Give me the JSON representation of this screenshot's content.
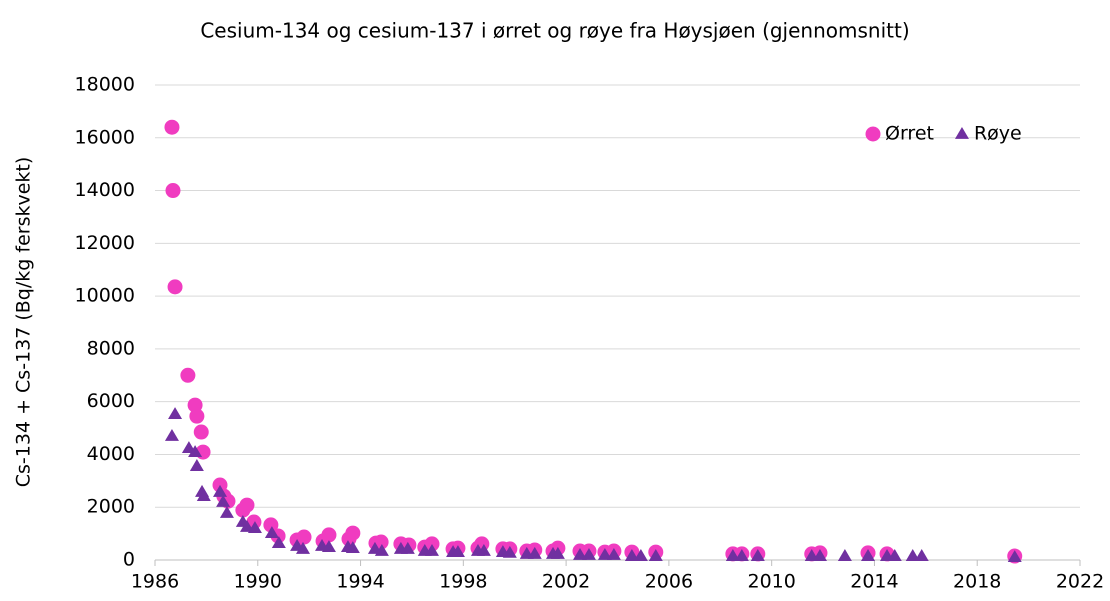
{
  "chart_data": {
    "type": "scatter",
    "title": "Cesium-134 og cesium-137 i ørret og røye fra Høysjøen (gjennomsnitt)",
    "y_label": "Cs-134 + Cs-137 (Bq/kg ferskvekt)",
    "xlim": [
      1986,
      2022
    ],
    "xticks": [
      1986,
      1990,
      1994,
      1998,
      2002,
      2006,
      2010,
      2014,
      2018,
      2022
    ],
    "ylim": [
      0,
      18000
    ],
    "yticks": [
      0,
      2000,
      4000,
      6000,
      8000,
      10000,
      12000,
      14000,
      16000,
      18000
    ],
    "grid": true,
    "legend": "top-right",
    "series": [
      {
        "name": "Ørret",
        "color": "#f03cc0",
        "marker": "circle",
        "x": [
          1986.66,
          1986.7,
          1986.78,
          1987.28,
          1987.56,
          1987.63,
          1987.8,
          1987.87,
          1988.53,
          1988.68,
          1988.84,
          1989.42,
          1989.58,
          1989.85,
          1990.51,
          1990.79,
          1991.53,
          1991.8,
          1992.54,
          1992.77,
          1993.55,
          1993.7,
          1994.6,
          1994.8,
          1995.57,
          1995.88,
          1996.5,
          1996.78,
          1997.6,
          1997.79,
          1998.57,
          1998.72,
          1999.54,
          1999.81,
          2000.47,
          2000.78,
          2001.49,
          2001.68,
          2002.54,
          2002.89,
          2003.51,
          2003.86,
          2004.56,
          2005.49,
          2008.49,
          2008.84,
          2009.46,
          2011.56,
          2011.88,
          2013.75,
          2014.49,
          2019.46
        ],
        "values": [
          16400,
          14000,
          10350,
          7000,
          5870,
          5450,
          4850,
          4090,
          2840,
          2420,
          2230,
          1890,
          2080,
          1440,
          1330,
          910,
          760,
          870,
          720,
          950,
          800,
          1020,
          640,
          680,
          610,
          570,
          490,
          610,
          420,
          450,
          450,
          610,
          420,
          420,
          340,
          380,
          340,
          450,
          340,
          340,
          300,
          340,
          300,
          300,
          230,
          230,
          230,
          230,
          270,
          270,
          230,
          150
        ]
      },
      {
        "name": "Røye",
        "color": "#7030a0",
        "marker": "triangle",
        "x": [
          1986.66,
          1986.78,
          1987.32,
          1987.56,
          1987.63,
          1987.83,
          1987.9,
          1988.53,
          1988.65,
          1988.8,
          1989.42,
          1989.58,
          1989.89,
          1990.55,
          1990.82,
          1991.53,
          1991.76,
          1992.5,
          1992.77,
          1993.51,
          1993.7,
          1994.56,
          1994.83,
          1995.57,
          1995.84,
          1996.5,
          1996.78,
          1997.6,
          1997.79,
          1998.57,
          1998.8,
          1999.54,
          1999.81,
          2000.47,
          2000.78,
          2001.49,
          2001.68,
          2002.54,
          2002.89,
          2003.51,
          2003.86,
          2004.56,
          2004.91,
          2005.49,
          2008.49,
          2008.84,
          2009.46,
          2011.56,
          2011.88,
          2012.85,
          2013.75,
          2014.49,
          2014.79,
          2015.49,
          2015.84,
          2019.46
        ],
        "values": [
          4700,
          5530,
          4240,
          4090,
          3560,
          2580,
          2420,
          2580,
          2200,
          1780,
          1440,
          1250,
          1210,
          1020,
          640,
          530,
          420,
          530,
          490,
          490,
          450,
          420,
          340,
          420,
          420,
          340,
          340,
          300,
          300,
          340,
          340,
          300,
          270,
          230,
          230,
          230,
          230,
          190,
          190,
          190,
          190,
          150,
          150,
          150,
          150,
          150,
          150,
          150,
          150,
          150,
          150,
          150,
          150,
          150,
          150,
          110
        ]
      }
    ]
  }
}
